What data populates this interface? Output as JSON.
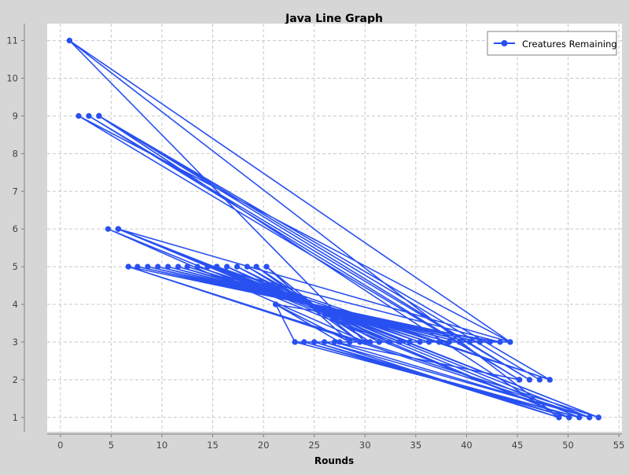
{
  "chart_data": {
    "type": "line",
    "title": "Java Line Graph",
    "xlabel": "Rounds",
    "ylabel": "",
    "xlim": [
      -1.3,
      55.3
    ],
    "ylim": [
      0.62,
      11.45
    ],
    "xticks": [
      0,
      5,
      10,
      15,
      20,
      25,
      30,
      35,
      40,
      45,
      50,
      55
    ],
    "yticks": [
      1,
      2,
      3,
      4,
      5,
      6,
      7,
      8,
      9,
      10,
      11
    ],
    "grid": true,
    "legend_position": "top-right",
    "series": [
      {
        "name": "Creatures Remaining",
        "color": "#2850f0",
        "points": [
          [
            0.9,
            11
          ],
          [
            44.3,
            3
          ],
          [
            1.8,
            9
          ],
          [
            45.2,
            2
          ],
          [
            2.8,
            9
          ],
          [
            46.2,
            2
          ],
          [
            3.8,
            9
          ],
          [
            47.2,
            2
          ],
          [
            3.8,
            9
          ],
          [
            48.2,
            2
          ],
          [
            3.8,
            9
          ],
          [
            49.1,
            1
          ],
          [
            0.9,
            11
          ],
          [
            30.0,
            3
          ],
          [
            4.7,
            6
          ],
          [
            50.1,
            1
          ],
          [
            5.7,
            6
          ],
          [
            51.1,
            1
          ],
          [
            5.7,
            6
          ],
          [
            52.1,
            1
          ],
          [
            6.7,
            5
          ],
          [
            53.0,
            1
          ],
          [
            6.7,
            5
          ],
          [
            42.3,
            3
          ],
          [
            7.6,
            5
          ],
          [
            41.3,
            3
          ],
          [
            8.6,
            5
          ],
          [
            40.3,
            3
          ],
          [
            9.6,
            5
          ],
          [
            39.3,
            3
          ],
          [
            10.6,
            5
          ],
          [
            38.3,
            3
          ],
          [
            11.6,
            5
          ],
          [
            37.3,
            3
          ],
          [
            12.5,
            5
          ],
          [
            36.3,
            3
          ],
          [
            13.5,
            5
          ],
          [
            35.4,
            3
          ],
          [
            14.5,
            5
          ],
          [
            34.4,
            3
          ],
          [
            15.4,
            5
          ],
          [
            33.4,
            3
          ],
          [
            16.4,
            5
          ],
          [
            32.4,
            3
          ],
          [
            17.4,
            5
          ],
          [
            31.4,
            3
          ],
          [
            18.4,
            5
          ],
          [
            30.5,
            3
          ],
          [
            19.3,
            5
          ],
          [
            29.5,
            3
          ],
          [
            20.3,
            5
          ],
          [
            28.5,
            3
          ],
          [
            21.2,
            4
          ],
          [
            27.5,
            3
          ],
          [
            21.2,
            4
          ],
          [
            23.1,
            3
          ],
          [
            21.2,
            4
          ],
          [
            43.3,
            3
          ],
          [
            14.5,
            5
          ],
          [
            48.2,
            2
          ],
          [
            15.4,
            5
          ],
          [
            53.0,
            1
          ],
          [
            5.7,
            6
          ],
          [
            44.3,
            3
          ],
          [
            23.1,
            3
          ],
          [
            51.1,
            1
          ],
          [
            24.0,
            3
          ],
          [
            50.1,
            1
          ],
          [
            25.0,
            3
          ],
          [
            49.1,
            1
          ],
          [
            26.0,
            3
          ],
          [
            52.1,
            1
          ],
          [
            27.0,
            3
          ],
          [
            45.2,
            2
          ]
        ]
      }
    ]
  }
}
